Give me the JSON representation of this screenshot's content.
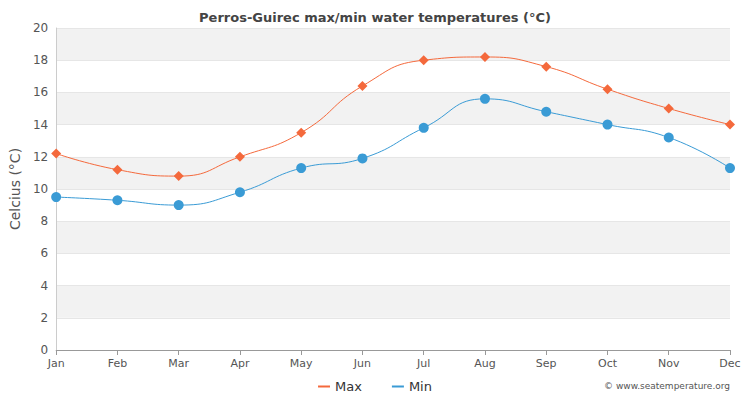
{
  "chart_data": {
    "type": "line",
    "title": "Perros-Guirec max/min water temperatures (°C)",
    "ylabel": "Celcius (°C)",
    "annotation": "© www.seatemperature.org",
    "categories": [
      "Jan",
      "Feb",
      "Mar",
      "Apr",
      "May",
      "Jun",
      "Jul",
      "Aug",
      "Sep",
      "Oct",
      "Nov",
      "Dec"
    ],
    "series": [
      {
        "name": "Max",
        "color": "#f4693c",
        "marker": "diamond",
        "line_style": "solid",
        "values": [
          12.2,
          11.2,
          10.8,
          12.0,
          13.5,
          16.4,
          18.0,
          18.2,
          17.6,
          16.2,
          15.0,
          14.0
        ]
      },
      {
        "name": "Min",
        "color": "#3a9bd5",
        "marker": "circle",
        "line_style": "solid",
        "values": [
          9.5,
          9.3,
          9.0,
          9.8,
          11.3,
          11.9,
          13.8,
          15.6,
          14.8,
          14.0,
          13.2,
          11.3
        ]
      }
    ],
    "ylim": [
      0,
      20
    ],
    "yticks": [
      0,
      2,
      4,
      6,
      8,
      10,
      12,
      14,
      16,
      18,
      20
    ],
    "grid": true,
    "legend": "bottom"
  }
}
